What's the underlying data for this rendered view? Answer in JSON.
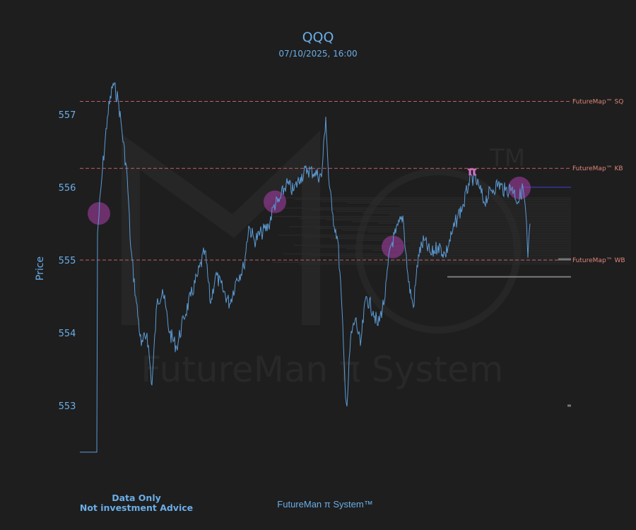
{
  "header": {
    "title": "QQQ",
    "subtitle": "07/10/2025, 16:00"
  },
  "footer": {
    "disclaimer_line1": "Data Only",
    "disclaimer_line2": "Not investment Advice",
    "brand": "FutureMan π System™"
  },
  "watermark": {
    "text": "FutureMan π System",
    "tm": "TM"
  },
  "colors": {
    "background": "#1e1e1e",
    "price_line": "#5b9bd5",
    "level_line": "#c0606a",
    "level_label": "#e0857a",
    "highlight": "#a03ca0",
    "pi": "#d070c0",
    "axis_text": "#6aaee8"
  },
  "chart_data": {
    "type": "line",
    "title": "QQQ",
    "subtitle": "07/10/2025, 16:00",
    "ylabel": "Price",
    "xlabel": "",
    "ylim": [
      552.2,
      557.6
    ],
    "yticks": [
      553,
      554,
      555,
      556,
      557
    ],
    "grid": false,
    "series": [
      {
        "points": [
          [
            0,
            552.36
          ],
          [
            24,
            552.36
          ],
          [
            25,
            555.37
          ],
          [
            32,
            556.24
          ],
          [
            39,
            556.97
          ],
          [
            47,
            557.43
          ],
          [
            54,
            557.21
          ],
          [
            59,
            556.83
          ],
          [
            67,
            556.15
          ],
          [
            72,
            555.17
          ],
          [
            79,
            554.5
          ],
          [
            87,
            553.82
          ],
          [
            95,
            554.0
          ],
          [
            102,
            553.28
          ],
          [
            109,
            554.4
          ],
          [
            117,
            554.6
          ],
          [
            127,
            554.0
          ],
          [
            137,
            553.8
          ],
          [
            147,
            554.2
          ],
          [
            157,
            554.5
          ],
          [
            167,
            554.8
          ],
          [
            177,
            555.13
          ],
          [
            185,
            554.4
          ],
          [
            192,
            554.8
          ],
          [
            202,
            554.6
          ],
          [
            212,
            554.4
          ],
          [
            222,
            554.75
          ],
          [
            232,
            554.9
          ],
          [
            239,
            555.47
          ],
          [
            247,
            555.27
          ],
          [
            257,
            555.37
          ],
          [
            267,
            555.47
          ],
          [
            275,
            555.76
          ],
          [
            282,
            555.8
          ],
          [
            292,
            556.05
          ],
          [
            302,
            555.95
          ],
          [
            312,
            556.14
          ],
          [
            322,
            556.24
          ],
          [
            332,
            556.2
          ],
          [
            342,
            556.14
          ],
          [
            348,
            556.97
          ],
          [
            352,
            556.14
          ],
          [
            357,
            555.66
          ],
          [
            365,
            555.27
          ],
          [
            370,
            554.5
          ],
          [
            375,
            553.33
          ],
          [
            378,
            552.99
          ],
          [
            383,
            553.91
          ],
          [
            390,
            554.2
          ],
          [
            397,
            553.82
          ],
          [
            405,
            554.5
          ],
          [
            415,
            554.3
          ],
          [
            422,
            554.1
          ],
          [
            432,
            554.5
          ],
          [
            439,
            555.17
          ],
          [
            447,
            555.37
          ],
          [
            457,
            555.61
          ],
          [
            465,
            554.7
          ],
          [
            472,
            554.35
          ],
          [
            479,
            555.07
          ],
          [
            487,
            555.27
          ],
          [
            497,
            555.07
          ],
          [
            507,
            555.2
          ],
          [
            517,
            555.07
          ],
          [
            527,
            555.37
          ],
          [
            535,
            555.61
          ],
          [
            543,
            555.76
          ],
          [
            550,
            556.05
          ],
          [
            557,
            556.14
          ],
          [
            565,
            556.0
          ],
          [
            572,
            555.8
          ],
          [
            582,
            555.95
          ],
          [
            592,
            556.05
          ],
          [
            602,
            555.95
          ],
          [
            612,
            556.0
          ],
          [
            620,
            555.8
          ],
          [
            627,
            556.0
          ],
          [
            631,
            555.66
          ],
          [
            634,
            555.03
          ],
          [
            637,
            555.5
          ]
        ]
      }
    ],
    "levels": [
      {
        "label": "FutureMap™ SQ",
        "price": 557.18
      },
      {
        "label": "FutureMap™ KB",
        "price": 556.26
      },
      {
        "label": "FutureMap™ WB",
        "price": 555.0
      }
    ],
    "highlights": [
      {
        "x": 27,
        "price": 555.64
      },
      {
        "x": 276,
        "price": 555.8
      },
      {
        "x": 443,
        "price": 555.18
      },
      {
        "x": 622,
        "price": 555.99
      }
    ],
    "pi_marker": {
      "label": "π",
      "x": 548,
      "price": 556.22
    },
    "reference_lines": [
      {
        "price": 556.0,
        "color": "#3a3ab0"
      },
      {
        "price": 554.77,
        "color": "#7a7a7a"
      }
    ]
  }
}
